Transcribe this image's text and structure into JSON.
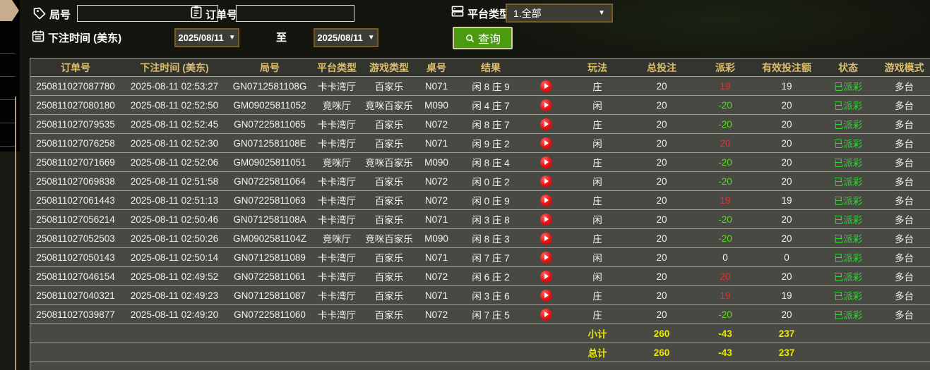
{
  "filters": {
    "round_label": "局号",
    "round_value": "",
    "order_label": "订单号",
    "order_value": "",
    "platform_label": "平台类型",
    "platform_value": "1.全部",
    "bet_time_label": "下注时间 (美东)",
    "date_from": "2025/08/11",
    "date_to": "2025/08/11",
    "to_label": "至",
    "query_label": "查询",
    "dropdown_arrow": "▼"
  },
  "colors": {
    "accent_gold": "#dcbd6d",
    "win_red": "#e43131",
    "loss_green": "#52de14",
    "status_green": "#2fd732",
    "totals_yellow": "#eaea00",
    "query_green": "#4a9b0f"
  },
  "table": {
    "headers": [
      "订单号",
      "下注时间 (美东)",
      "局号",
      "平台类型",
      "游戏类型",
      "桌号",
      "结果",
      "",
      "玩法",
      "总投注",
      "派彩",
      "有效投注额",
      "状态",
      "游戏模式"
    ],
    "rows": [
      {
        "order": "250811027087780",
        "time": "2025-08-11 02:53:27",
        "round": "GN0712581108G",
        "platform": "卡卡湾厅",
        "game": "百家乐",
        "table_no": "N071",
        "result": "闲 8 庄 9",
        "bet": "庄",
        "total": "20",
        "payout": "19",
        "payout_state": "win",
        "valid": "19",
        "status": "已派彩",
        "mode": "多台"
      },
      {
        "order": "250811027080180",
        "time": "2025-08-11 02:52:50",
        "round": "GM09025811052",
        "platform": "竞咪厅",
        "game": "竞咪百家乐",
        "table_no": "M090",
        "result": "闲 4 庄 7",
        "bet": "闲",
        "total": "20",
        "payout": "-20",
        "payout_state": "loss",
        "valid": "20",
        "status": "已派彩",
        "mode": "多台"
      },
      {
        "order": "250811027079535",
        "time": "2025-08-11 02:52:45",
        "round": "GN07225811065",
        "platform": "卡卡湾厅",
        "game": "百家乐",
        "table_no": "N072",
        "result": "闲 8 庄 7",
        "bet": "庄",
        "total": "20",
        "payout": "-20",
        "payout_state": "loss",
        "valid": "20",
        "status": "已派彩",
        "mode": "多台"
      },
      {
        "order": "250811027076258",
        "time": "2025-08-11 02:52:30",
        "round": "GN0712581108E",
        "platform": "卡卡湾厅",
        "game": "百家乐",
        "table_no": "N071",
        "result": "闲 9 庄 2",
        "bet": "闲",
        "total": "20",
        "payout": "20",
        "payout_state": "win",
        "valid": "20",
        "status": "已派彩",
        "mode": "多台"
      },
      {
        "order": "250811027071669",
        "time": "2025-08-11 02:52:06",
        "round": "GM09025811051",
        "platform": "竞咪厅",
        "game": "竞咪百家乐",
        "table_no": "M090",
        "result": "闲 8 庄 4",
        "bet": "庄",
        "total": "20",
        "payout": "-20",
        "payout_state": "loss",
        "valid": "20",
        "status": "已派彩",
        "mode": "多台"
      },
      {
        "order": "250811027069838",
        "time": "2025-08-11 02:51:58",
        "round": "GN07225811064",
        "platform": "卡卡湾厅",
        "game": "百家乐",
        "table_no": "N072",
        "result": "闲 0 庄 2",
        "bet": "闲",
        "total": "20",
        "payout": "-20",
        "payout_state": "loss",
        "valid": "20",
        "status": "已派彩",
        "mode": "多台"
      },
      {
        "order": "250811027061443",
        "time": "2025-08-11 02:51:13",
        "round": "GN07225811063",
        "platform": "卡卡湾厅",
        "game": "百家乐",
        "table_no": "N072",
        "result": "闲 0 庄 9",
        "bet": "庄",
        "total": "20",
        "payout": "19",
        "payout_state": "win",
        "valid": "19",
        "status": "已派彩",
        "mode": "多台"
      },
      {
        "order": "250811027056214",
        "time": "2025-08-11 02:50:46",
        "round": "GN0712581108A",
        "platform": "卡卡湾厅",
        "game": "百家乐",
        "table_no": "N071",
        "result": "闲 3 庄 8",
        "bet": "闲",
        "total": "20",
        "payout": "-20",
        "payout_state": "loss",
        "valid": "20",
        "status": "已派彩",
        "mode": "多台"
      },
      {
        "order": "250811027052503",
        "time": "2025-08-11 02:50:26",
        "round": "GM0902581104Z",
        "platform": "竞咪厅",
        "game": "竞咪百家乐",
        "table_no": "M090",
        "result": "闲 8 庄 3",
        "bet": "庄",
        "total": "20",
        "payout": "-20",
        "payout_state": "loss",
        "valid": "20",
        "status": "已派彩",
        "mode": "多台"
      },
      {
        "order": "250811027050143",
        "time": "2025-08-11 02:50:14",
        "round": "GN07125811089",
        "platform": "卡卡湾厅",
        "game": "百家乐",
        "table_no": "N071",
        "result": "闲 7 庄 7",
        "bet": "闲",
        "total": "20",
        "payout": "0",
        "payout_state": "push",
        "valid": "0",
        "status": "已派彩",
        "mode": "多台"
      },
      {
        "order": "250811027046154",
        "time": "2025-08-11 02:49:52",
        "round": "GN07225811061",
        "platform": "卡卡湾厅",
        "game": "百家乐",
        "table_no": "N072",
        "result": "闲 6 庄 2",
        "bet": "闲",
        "total": "20",
        "payout": "20",
        "payout_state": "win",
        "valid": "20",
        "status": "已派彩",
        "mode": "多台"
      },
      {
        "order": "250811027040321",
        "time": "2025-08-11 02:49:23",
        "round": "GN07125811087",
        "platform": "卡卡湾厅",
        "game": "百家乐",
        "table_no": "N071",
        "result": "闲 3 庄 6",
        "bet": "庄",
        "total": "20",
        "payout": "19",
        "payout_state": "win",
        "valid": "19",
        "status": "已派彩",
        "mode": "多台"
      },
      {
        "order": "250811027039877",
        "time": "2025-08-11 02:49:20",
        "round": "GN07225811060",
        "platform": "卡卡湾厅",
        "game": "百家乐",
        "table_no": "N072",
        "result": "闲 7 庄 5",
        "bet": "庄",
        "total": "20",
        "payout": "-20",
        "payout_state": "loss",
        "valid": "20",
        "status": "已派彩",
        "mode": "多台"
      }
    ],
    "subtotal": {
      "label": "小计",
      "total": "260",
      "payout": "-43",
      "valid": "237"
    },
    "grand_total": {
      "label": "总计",
      "total": "260",
      "payout": "-43",
      "valid": "237"
    }
  }
}
